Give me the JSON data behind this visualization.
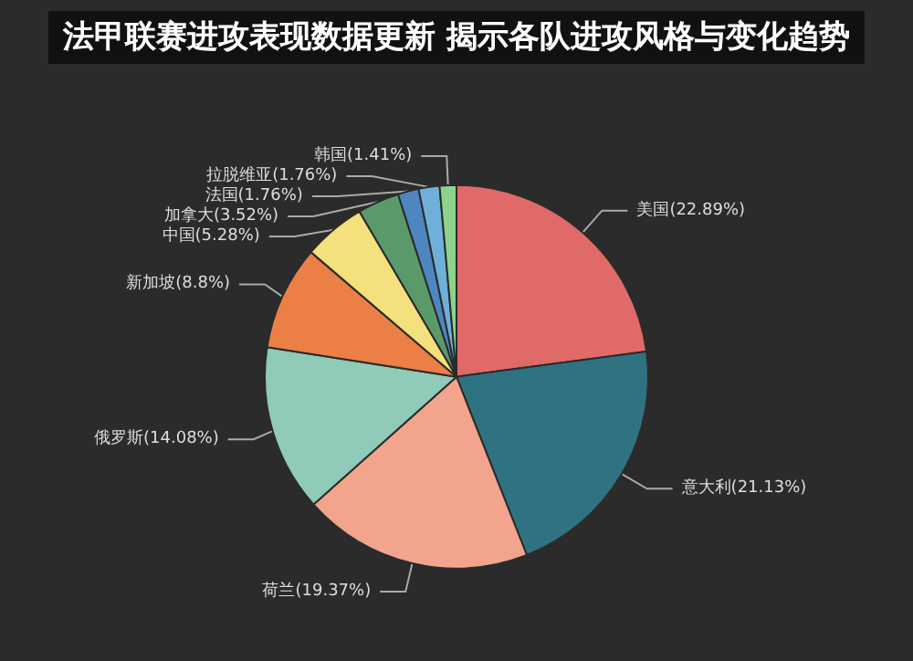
{
  "chart_data": {
    "type": "pie",
    "title": "法甲联赛进攻表现数据更新 揭示各队进攻风格与变化趋势",
    "categories": [
      "美国",
      "意大利",
      "荷兰",
      "俄罗斯",
      "新加坡",
      "中国",
      "加拿大",
      "法国",
      "拉脱维亚",
      "韩国"
    ],
    "values": [
      22.89,
      21.13,
      19.37,
      14.08,
      8.8,
      5.28,
      3.52,
      1.76,
      1.76,
      1.41
    ],
    "value_labels": [
      "(22.89%)",
      "(21.13%)",
      "(19.37%)",
      "(14.08%)",
      "(8.8%)",
      "(5.28%)",
      "(3.52%)",
      "(1.76%)",
      "(1.76%)",
      "(1.41%)"
    ],
    "colors": [
      "#e06a68",
      "#2f7382",
      "#f2a48c",
      "#8fcbb8",
      "#ec7f45",
      "#f4e07c",
      "#5a9a6a",
      "#4e86c0",
      "#6fb0d8",
      "#8dd48a"
    ],
    "legend": false
  }
}
